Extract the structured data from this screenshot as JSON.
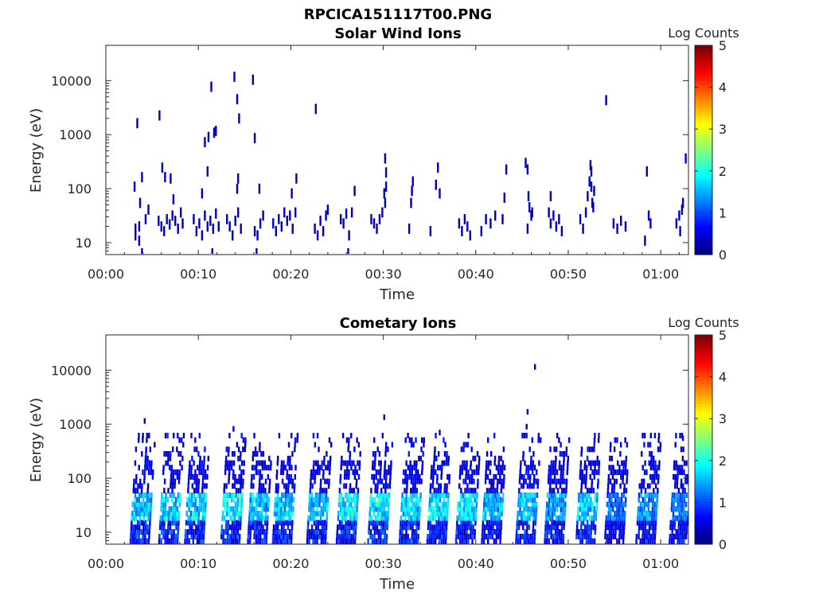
{
  "title": "RPCICA151117T00.PNG",
  "colors": {
    "low": "#00007f",
    "high": "#7f0000",
    "axes": "#262626"
  },
  "chart_data": [
    {
      "type": "heatmap",
      "title": "Solar Wind Ions",
      "xlabel": "Time",
      "ylabel": "Energy (eV)",
      "xlim_min": [
        0,
        63
      ],
      "x_tick_labels": [
        "00:00",
        "00:10",
        "00:20",
        "00:30",
        "00:40",
        "00:50",
        "01:00"
      ],
      "y_scale": "log",
      "ylim": [
        6,
        45000
      ],
      "y_tick_labels": [
        "10",
        "100",
        "1000",
        "10000"
      ],
      "colorbar": {
        "label": "Log Counts",
        "range": [
          0,
          5
        ],
        "ticks": [
          "0",
          "1",
          "2",
          "3",
          "4",
          "5"
        ],
        "colormap": "jet"
      },
      "grid": false,
      "cells": [
        [
          3.1,
          15,
          0.3
        ],
        [
          3.1,
          20,
          0.3
        ],
        [
          3.5,
          12,
          0.3
        ],
        [
          3.5,
          22,
          0.3
        ],
        [
          3.8,
          7,
          0.3
        ],
        [
          4.2,
          30,
          0.3
        ],
        [
          4.5,
          45,
          0.3
        ],
        [
          3,
          120,
          0.3
        ],
        [
          3.3,
          1800,
          0.3
        ],
        [
          3.8,
          180,
          0.3
        ],
        [
          3.6,
          60,
          0.3
        ],
        [
          5.6,
          28,
          0.3
        ],
        [
          5.9,
          22,
          0.3
        ],
        [
          6.2,
          18,
          0.3
        ],
        [
          6.5,
          30,
          0.3
        ],
        [
          6.8,
          24,
          0.3
        ],
        [
          7.1,
          35,
          0.3
        ],
        [
          7.4,
          28,
          0.3
        ],
        [
          7.7,
          20,
          0.3
        ],
        [
          8.0,
          40,
          0.3
        ],
        [
          8.2,
          25,
          0.3
        ],
        [
          6,
          270,
          0.3
        ],
        [
          5.7,
          2500,
          0.3
        ],
        [
          6.3,
          180,
          0.3
        ],
        [
          6.9,
          170,
          0.3
        ],
        [
          7.2,
          70,
          0.3
        ],
        [
          9.4,
          30,
          0.3
        ],
        [
          9.7,
          18,
          0.3
        ],
        [
          10.0,
          25,
          0.3
        ],
        [
          10.3,
          15,
          0.3
        ],
        [
          10.6,
          35,
          0.3
        ],
        [
          10.9,
          22,
          0.3
        ],
        [
          11.2,
          28,
          0.3
        ],
        [
          11.5,
          20,
          0.3
        ],
        [
          11.8,
          38,
          0.3
        ],
        [
          12.1,
          22,
          0.3
        ],
        [
          10.6,
          800,
          0.3
        ],
        [
          11.0,
          1000,
          0.3
        ],
        [
          11.3,
          8500,
          0.3
        ],
        [
          11.6,
          1200,
          0.3
        ],
        [
          11.8,
          1300,
          0.3
        ],
        [
          10.9,
          230,
          0.3
        ],
        [
          10.3,
          90,
          0.3
        ],
        [
          11.4,
          7,
          0.3
        ],
        [
          13.0,
          30,
          0.3
        ],
        [
          13.3,
          22,
          0.3
        ],
        [
          13.6,
          15,
          0.3
        ],
        [
          13.9,
          28,
          0.3
        ],
        [
          14.2,
          40,
          0.3
        ],
        [
          14.5,
          20,
          0.3
        ],
        [
          13.8,
          13000,
          0.3
        ],
        [
          14.1,
          5000,
          0.3
        ],
        [
          14.3,
          2200,
          0.3
        ],
        [
          14.2,
          170,
          0.3
        ],
        [
          14.1,
          110,
          0.3
        ],
        [
          15.8,
          11500,
          0.3
        ],
        [
          16.0,
          950,
          0.3
        ],
        [
          16.0,
          18,
          0.3
        ],
        [
          16.3,
          15,
          0.3
        ],
        [
          16.6,
          25,
          0.3
        ],
        [
          16.9,
          35,
          0.3
        ],
        [
          16.2,
          7,
          0.3
        ],
        [
          16.5,
          110,
          0.3
        ],
        [
          18.0,
          25,
          0.3
        ],
        [
          18.3,
          18,
          0.3
        ],
        [
          18.6,
          30,
          0.3
        ],
        [
          18.9,
          22,
          0.3
        ],
        [
          19.2,
          40,
          0.3
        ],
        [
          19.5,
          28,
          0.3
        ],
        [
          19.8,
          35,
          0.3
        ],
        [
          20.1,
          20,
          0.3
        ],
        [
          20.4,
          40,
          0.3
        ],
        [
          20.0,
          90,
          0.3
        ],
        [
          20.5,
          170,
          0.3
        ],
        [
          22.5,
          20,
          0.3
        ],
        [
          22.8,
          15,
          0.3
        ],
        [
          23.1,
          28,
          0.3
        ],
        [
          23.4,
          18,
          0.3
        ],
        [
          23.7,
          35,
          0.3
        ],
        [
          22.6,
          3300,
          0.3
        ],
        [
          23.9,
          45,
          0.3
        ],
        [
          25.3,
          30,
          0.3
        ],
        [
          25.6,
          25,
          0.3
        ],
        [
          25.9,
          38,
          0.3
        ],
        [
          26.2,
          15,
          0.3
        ],
        [
          26.5,
          40,
          0.3
        ],
        [
          26.1,
          7,
          0.3
        ],
        [
          26.8,
          100,
          0.3
        ],
        [
          28.6,
          30,
          0.3
        ],
        [
          28.9,
          25,
          0.3
        ],
        [
          29.2,
          20,
          0.3
        ],
        [
          29.5,
          30,
          0.3
        ],
        [
          29.8,
          40,
          0.3
        ],
        [
          30.1,
          60,
          0.3
        ],
        [
          30.2,
          120,
          0.3
        ],
        [
          30.2,
          220,
          0.3
        ],
        [
          30.1,
          400,
          0.3
        ],
        [
          30.0,
          90,
          0.3
        ],
        [
          32.7,
          20,
          0.3
        ],
        [
          32.9,
          60,
          0.3
        ],
        [
          33.0,
          100,
          0.3
        ],
        [
          33.1,
          150,
          0.3
        ],
        [
          35.0,
          18,
          0.3
        ],
        [
          35.6,
          130,
          0.3
        ],
        [
          35.8,
          270,
          0.3
        ],
        [
          36.0,
          90,
          0.3
        ],
        [
          38.1,
          25,
          0.3
        ],
        [
          38.4,
          18,
          0.3
        ],
        [
          38.7,
          30,
          0.3
        ],
        [
          39.0,
          22,
          0.3
        ],
        [
          39.3,
          15,
          0.3
        ],
        [
          40.5,
          18,
          0.3
        ],
        [
          41.0,
          30,
          0.3
        ],
        [
          41.5,
          25,
          0.3
        ],
        [
          42.0,
          35,
          0.3
        ],
        [
          42.8,
          30,
          0.3
        ],
        [
          43.0,
          75,
          0.3
        ],
        [
          43.2,
          250,
          0.3
        ],
        [
          45.3,
          330,
          0.3
        ],
        [
          45.5,
          250,
          0.3
        ],
        [
          45.6,
          80,
          0.3
        ],
        [
          45.7,
          50,
          0.3
        ],
        [
          45.9,
          35,
          0.3
        ],
        [
          45.5,
          20,
          0.3
        ],
        [
          46.0,
          40,
          0.3
        ],
        [
          47.8,
          40,
          0.3
        ],
        [
          48.0,
          25,
          0.3
        ],
        [
          48.3,
          35,
          0.3
        ],
        [
          48.6,
          22,
          0.3
        ],
        [
          48.9,
          30,
          0.3
        ],
        [
          49.2,
          18,
          0.3
        ],
        [
          48.0,
          80,
          0.3
        ],
        [
          51.2,
          30,
          0.3
        ],
        [
          51.5,
          20,
          0.3
        ],
        [
          51.8,
          40,
          0.3
        ],
        [
          52.0,
          80,
          0.3
        ],
        [
          52.2,
          150,
          0.3
        ],
        [
          52.4,
          120,
          0.3
        ],
        [
          52.5,
          60,
          0.3
        ],
        [
          52.7,
          100,
          0.3
        ],
        [
          52.3,
          300,
          0.3
        ],
        [
          52.4,
          230,
          0.3
        ],
        [
          52.6,
          50,
          0.3
        ],
        [
          54.0,
          4800,
          0.3
        ],
        [
          54.8,
          25,
          0.3
        ],
        [
          55.2,
          20,
          0.3
        ],
        [
          55.6,
          28,
          0.3
        ],
        [
          56.1,
          22,
          0.3
        ],
        [
          58.4,
          230,
          0.3
        ],
        [
          58.6,
          35,
          0.3
        ],
        [
          58.8,
          25,
          0.3
        ],
        [
          58.2,
          12,
          0.3
        ],
        [
          61.6,
          25,
          0.3
        ],
        [
          61.9,
          35,
          0.3
        ],
        [
          62.2,
          45,
          0.3
        ],
        [
          62.0,
          18,
          0.3
        ],
        [
          62.6,
          400,
          0.3
        ],
        [
          62.3,
          60,
          0.3
        ]
      ]
    },
    {
      "type": "heatmap",
      "title": "Cometary Ions",
      "xlabel": "Time",
      "ylabel": "Energy (eV)",
      "xlim_min": [
        0,
        63
      ],
      "x_tick_labels": [
        "00:00",
        "00:10",
        "00:20",
        "00:30",
        "00:40",
        "00:50",
        "01:00"
      ],
      "y_scale": "log",
      "ylim": [
        6,
        45000
      ],
      "y_tick_labels": [
        "10",
        "100",
        "1000",
        "10000"
      ],
      "colorbar": {
        "label": "Log Counts",
        "range": [
          0,
          5
        ],
        "ticks": [
          "0",
          "1",
          "2",
          "3",
          "4",
          "5"
        ],
        "colormap": "jet"
      },
      "grid": false,
      "bursts": [
        [
          3.8,
          1.3
        ],
        [
          6.9,
          1.4
        ],
        [
          9.7,
          1.4
        ],
        [
          13.6,
          1.5
        ],
        [
          16.5,
          1.3
        ],
        [
          19.2,
          1.4
        ],
        [
          22.9,
          1.3
        ],
        [
          26.1,
          1.5
        ],
        [
          29.5,
          1.6
        ],
        [
          32.9,
          1.3
        ],
        [
          35.9,
          1.5
        ],
        [
          39.0,
          1.5
        ],
        [
          41.8,
          1.2
        ],
        [
          45.5,
          1.3
        ],
        [
          48.6,
          1.2
        ],
        [
          52.0,
          1.4
        ],
        [
          55.1,
          0.8
        ],
        [
          58.5,
          1.0
        ],
        [
          62.1,
          0.9
        ]
      ],
      "sparse_points": [
        [
          4.1,
          1150
        ],
        [
          30.0,
          1350
        ],
        [
          45.5,
          1700
        ],
        [
          46.3,
          11500
        ],
        [
          45.4,
          900
        ],
        [
          36.0,
          700
        ],
        [
          13.7,
          820
        ],
        [
          62.3,
          550
        ]
      ]
    }
  ]
}
